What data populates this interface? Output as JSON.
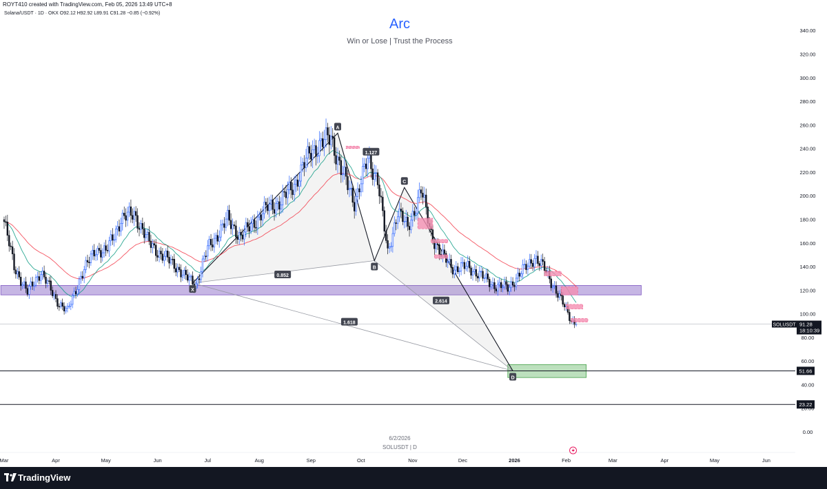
{
  "header": {
    "credit": "ROYT410 created with TradingView.com, Feb 05, 2026 13:49 UTC+8",
    "ohlc": "Solana/USDT · 1D · OKX  O92.12  H92.92  L89.91  C91.28  −0.85 (−0.92%)"
  },
  "watermark": {
    "date": "6/2/2026",
    "symbol": "SOLUSDT | D"
  },
  "branding": {
    "name": "TradingView"
  },
  "colors": {
    "up": "#2962ff",
    "down": "#131722",
    "title": "#2962ff",
    "ema_red": "#f23645",
    "ema_green": "#089981",
    "zone_purple": "#b39ddb",
    "zone_green": "#a5d6a7",
    "supply": "#f48fb1"
  },
  "chart_data": {
    "type": "candlestick",
    "title": "Arc",
    "subtitle": "Win or Lose | Trust the Process",
    "symbol": "SOLUSDT",
    "ylim": [
      0,
      350
    ],
    "y_ticks": [
      0,
      20,
      40,
      60,
      80,
      100,
      120,
      140,
      160,
      180,
      200,
      220,
      240,
      260,
      280,
      300,
      320,
      340
    ],
    "y_tick_labels": [
      "0.00",
      "20.00",
      "40.00",
      "60.00",
      "80.00",
      "100.00",
      "120.00",
      "140.00",
      "160.00",
      "180.00",
      "200.00",
      "220.00",
      "240.00",
      "260.00",
      "280.00",
      "300.00",
      "320.00",
      "340.00"
    ],
    "x_labels": [
      "Mar",
      "Apr",
      "May",
      "Jun",
      "Jul",
      "Aug",
      "Sep",
      "Oct",
      "Nov",
      "Dec",
      "2026",
      "Feb",
      "Mar",
      "Apr",
      "May",
      "Jun"
    ],
    "x_label_days": [
      0,
      31,
      61,
      92,
      122,
      153,
      184,
      214,
      245,
      275,
      306,
      337,
      365,
      396,
      426,
      457
    ],
    "last_day": 343,
    "price_path": [
      [
        0,
        178
      ],
      [
        6,
        140
      ],
      [
        14,
        118
      ],
      [
        22,
        136
      ],
      [
        31,
        112
      ],
      [
        38,
        102
      ],
      [
        46,
        132
      ],
      [
        55,
        155
      ],
      [
        61,
        152
      ],
      [
        70,
        180
      ],
      [
        78,
        185
      ],
      [
        86,
        162
      ],
      [
        94,
        150
      ],
      [
        102,
        142
      ],
      [
        108,
        132
      ],
      [
        115,
        125
      ],
      [
        122,
        155
      ],
      [
        134,
        180
      ],
      [
        142,
        165
      ],
      [
        150,
        178
      ],
      [
        158,
        190
      ],
      [
        166,
        195
      ],
      [
        175,
        212
      ],
      [
        184,
        238
      ],
      [
        196,
        250
      ],
      [
        202,
        222
      ],
      [
        210,
        195
      ],
      [
        218,
        230
      ],
      [
        224,
        215
      ],
      [
        230,
        150
      ],
      [
        236,
        188
      ],
      [
        242,
        172
      ],
      [
        250,
        205
      ],
      [
        256,
        168
      ],
      [
        262,
        150
      ],
      [
        270,
        138
      ],
      [
        278,
        140
      ],
      [
        286,
        132
      ],
      [
        294,
        124
      ],
      [
        302,
        122
      ],
      [
        312,
        138
      ],
      [
        318,
        148
      ],
      [
        324,
        138
      ],
      [
        330,
        122
      ],
      [
        336,
        106
      ],
      [
        340,
        95
      ],
      [
        343,
        91.28
      ]
    ],
    "harmonic": {
      "X": [
        113,
        126
      ],
      "A": [
        200,
        253
      ],
      "B": [
        222,
        145
      ],
      "C": [
        240,
        207
      ],
      "D": [
        305,
        51.66
      ],
      "labels": [
        "X",
        "A",
        "B",
        "C",
        "D"
      ],
      "ratios": [
        {
          "text": "0.852",
          "at": [
            167,
            133
          ]
        },
        {
          "text": "1.618",
          "at": [
            207,
            93
          ]
        },
        {
          "text": "2.614",
          "at": [
            262,
            111
          ]
        },
        {
          "text": "1.127",
          "at": [
            220,
            237
          ]
        }
      ]
    },
    "zones": [
      {
        "name": "support-zone",
        "d0": -2,
        "d1": 382,
        "y0": 116,
        "y1": 124
      },
      {
        "name": "target-zone",
        "d0": 302,
        "d1": 349,
        "y0": 46,
        "y1": 57
      }
    ],
    "supply_blocks": [
      {
        "d0": 248,
        "d1": 257,
        "y0": 172,
        "y1": 181
      },
      {
        "d0": 256,
        "d1": 266,
        "y0": 160,
        "y1": 163
      },
      {
        "d0": 258,
        "d1": 266,
        "y0": 147,
        "y1": 150
      },
      {
        "d0": 205,
        "d1": 213,
        "y0": 240,
        "y1": 242
      },
      {
        "d0": 324,
        "d1": 334,
        "y0": 132,
        "y1": 136
      },
      {
        "d0": 334,
        "d1": 344,
        "y0": 116,
        "y1": 123
      },
      {
        "d0": 337,
        "d1": 347,
        "y0": 104,
        "y1": 108
      },
      {
        "d0": 340,
        "d1": 350,
        "y0": 93,
        "y1": 96
      }
    ],
    "horizontal_lines": [
      {
        "value": 51.66,
        "label": "51.66"
      },
      {
        "value": 23.22,
        "label": "23.22"
      }
    ],
    "last_price": {
      "value": 91.28,
      "label": "91.28",
      "countdown": "18:10:39",
      "symbol_label": "SOLUSDT"
    }
  }
}
